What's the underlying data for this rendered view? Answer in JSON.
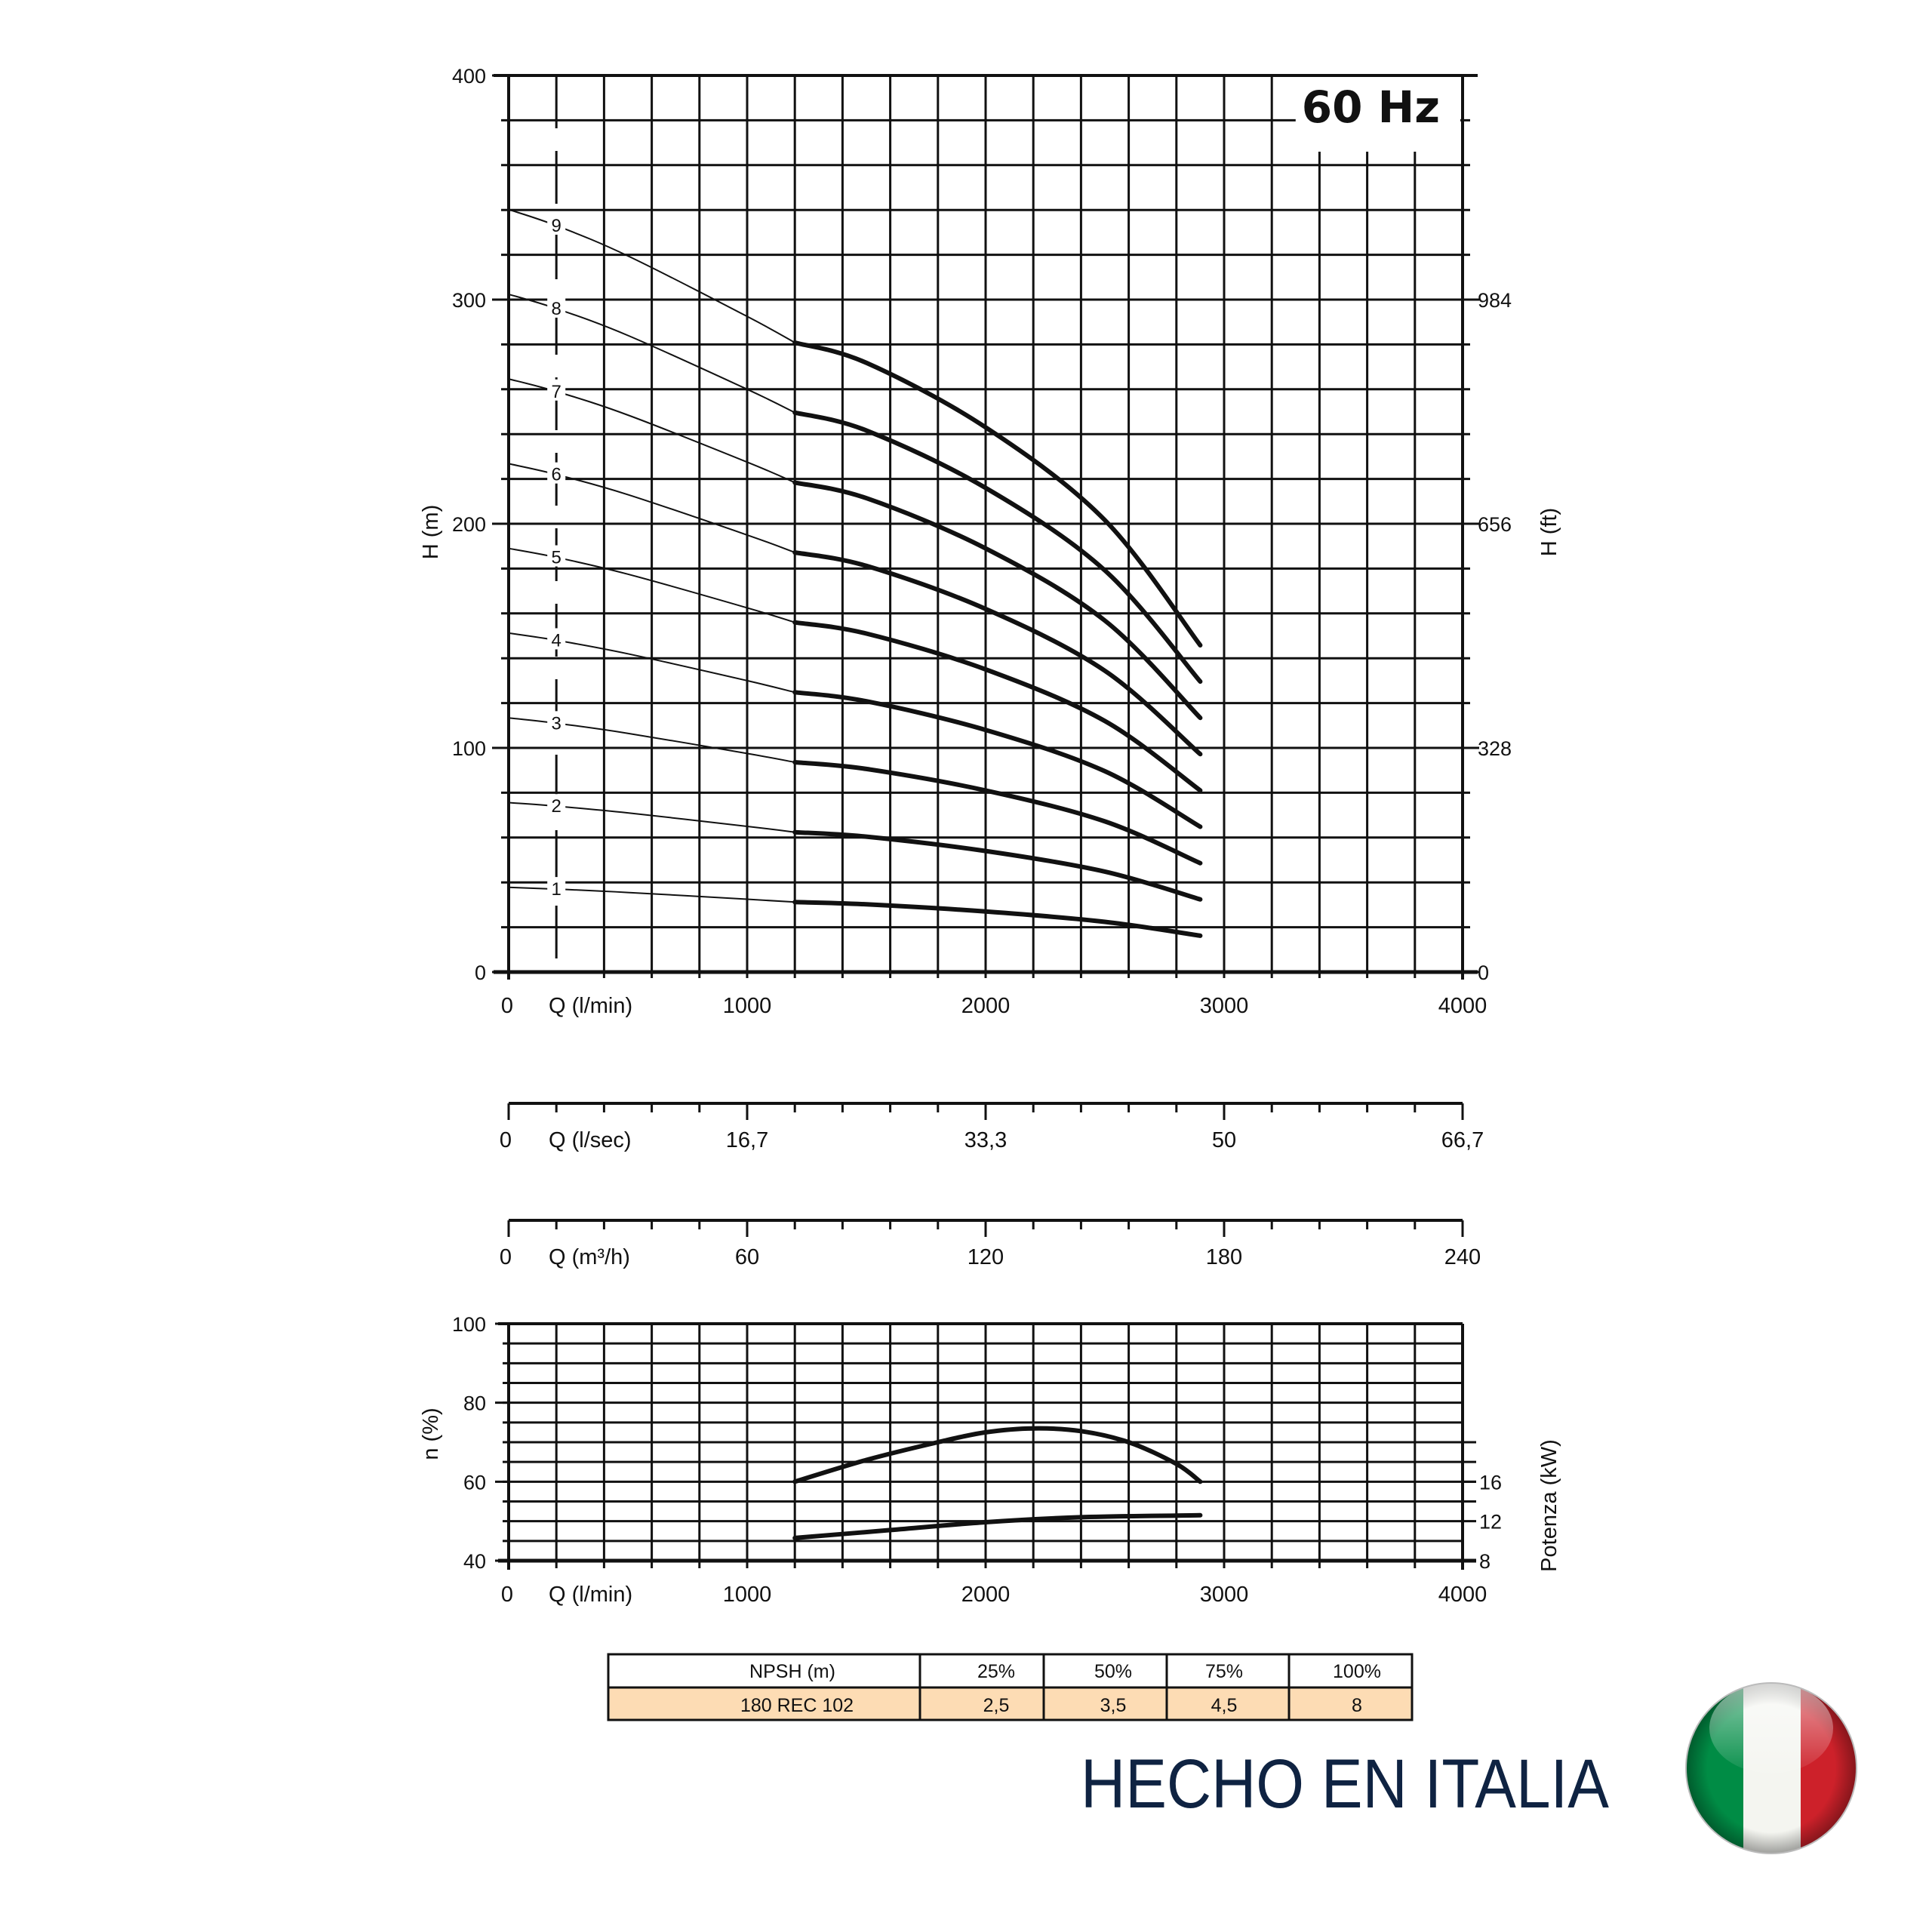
{
  "colors": {
    "grid": "#111111",
    "curve": "#111111",
    "table_row": "#fddcb4",
    "made_in": "#0f2342",
    "flag_green": "#008c45",
    "flag_white": "#f4f5f0",
    "flag_red": "#cd212a"
  },
  "chart_data": [
    {
      "type": "line",
      "title": "60 Hz",
      "xlabel": "Q (l/min)",
      "ylabel": "H (m)",
      "ylabel_right": "H (ft)",
      "xlim": [
        0,
        4000
      ],
      "ylim": [
        0,
        400
      ],
      "x_ticks": [
        "0",
        "1000",
        "2000",
        "3000",
        "4000"
      ],
      "y_ticks": [
        "0",
        "100",
        "200",
        "300",
        "400"
      ],
      "y_ticks_right": [
        "0",
        "328",
        "656",
        "984"
      ],
      "grid": true,
      "x": [
        0,
        200,
        500,
        1000,
        1200,
        1500,
        2000,
        2500,
        2900
      ],
      "series": [
        {
          "name": "1",
          "values": [
            37.8,
            37,
            35.5,
            32.5,
            31.2,
            30.2,
            27,
            22.4,
            16.2
          ]
        },
        {
          "name": "2",
          "values": [
            75.6,
            74,
            71,
            65,
            62.4,
            60.4,
            54,
            44.8,
            32.4
          ]
        },
        {
          "name": "3",
          "values": [
            113.4,
            111,
            106.5,
            97.5,
            93.6,
            90.6,
            81,
            67.2,
            48.6
          ]
        },
        {
          "name": "4",
          "values": [
            151.2,
            148,
            142,
            130,
            124.8,
            120.8,
            108,
            89.6,
            64.8
          ]
        },
        {
          "name": "5",
          "values": [
            189,
            185,
            177.5,
            162.5,
            156,
            151,
            135,
            112,
            81
          ]
        },
        {
          "name": "6",
          "values": [
            226.8,
            222,
            213,
            195,
            187.2,
            181.2,
            162,
            134.4,
            97.2
          ]
        },
        {
          "name": "7",
          "values": [
            264.6,
            259,
            248.5,
            227.5,
            218.4,
            211.4,
            189,
            156.8,
            113.4
          ]
        },
        {
          "name": "8",
          "values": [
            302.4,
            296,
            284,
            260,
            249.6,
            241.6,
            216,
            179.2,
            129.6
          ]
        },
        {
          "name": "9",
          "values": [
            340.2,
            333,
            319.5,
            292.5,
            280.8,
            271.8,
            243,
            201.6,
            145.8
          ]
        }
      ]
    },
    {
      "type": "line",
      "xlabel": "Q (l/sec)",
      "x_ticks": [
        "0",
        "16,7",
        "33,3",
        "50",
        "66,7"
      ]
    },
    {
      "type": "line",
      "xlabel": "Q (m³/h)",
      "x_ticks": [
        "0",
        "60",
        "120",
        "180",
        "240"
      ]
    },
    {
      "type": "line",
      "xlabel": "Q (l/min)",
      "ylabel": "n (%)",
      "ylabel_right": "Potenza (kW)",
      "xlim": [
        0,
        4000
      ],
      "ylim": [
        40,
        100
      ],
      "ylim_right": [
        8,
        32
      ],
      "x_ticks": [
        "0",
        "1000",
        "2000",
        "3000",
        "4000"
      ],
      "y_ticks": [
        "40",
        "60",
        "80",
        "100"
      ],
      "y_ticks_right": [
        "8",
        "12",
        "16"
      ],
      "grid": true,
      "efficiency": {
        "x": [
          1200,
          1500,
          1800,
          2000,
          2200,
          2400,
          2600,
          2800,
          2900
        ],
        "values": [
          60,
          65.5,
          70,
          72.5,
          73.5,
          72.8,
          70,
          64.5,
          60
        ]
      },
      "power_kw": {
        "x": [
          1200,
          1600,
          2000,
          2400,
          2900
        ],
        "values": [
          10.3,
          11.1,
          11.9,
          12.4,
          12.6
        ]
      }
    }
  ],
  "npsh_table": {
    "headers": [
      "NPSH (m)",
      "25%",
      "50%",
      "75%",
      "100%"
    ],
    "row": [
      "180 REC 102",
      "2,5",
      "3,5",
      "4,5",
      "8"
    ]
  },
  "made_in": "HECHO EN ITALIA",
  "flag_icon": "italy-flag-icon"
}
